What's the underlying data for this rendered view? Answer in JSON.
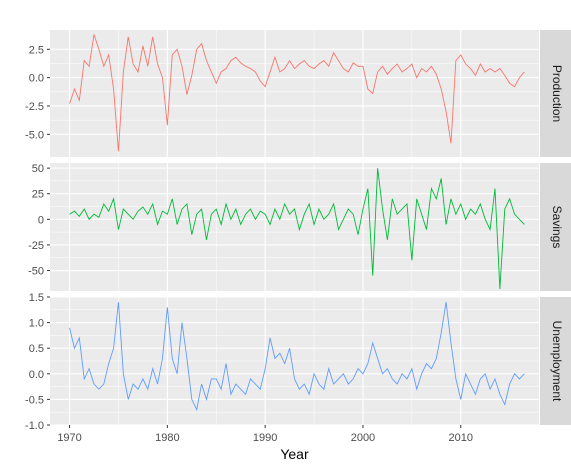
{
  "chart_data": {
    "type": "line",
    "xlabel": "Year",
    "x_ticks": [
      1970,
      1980,
      1990,
      2000,
      2010
    ],
    "x_range": [
      1968,
      2018
    ],
    "grid": true,
    "panels": [
      {
        "name": "Production",
        "color": "#f8766d",
        "y_ticks": [
          "2.5",
          "0.0",
          "-2.5",
          "-5.0"
        ],
        "y_tick_values": [
          2.5,
          0,
          -2.5,
          -5
        ],
        "ylim": [
          -7.0,
          4.2
        ],
        "x": [
          1970.0,
          1970.5,
          1971.0,
          1971.5,
          1972.0,
          1972.5,
          1973.0,
          1973.5,
          1974.0,
          1974.5,
          1975.0,
          1975.5,
          1976.0,
          1976.5,
          1977.0,
          1977.5,
          1978.0,
          1978.5,
          1979.0,
          1979.5,
          1980.0,
          1980.5,
          1981.0,
          1981.5,
          1982.0,
          1982.5,
          1983.0,
          1983.5,
          1984.0,
          1984.5,
          1985.0,
          1985.5,
          1986.0,
          1986.5,
          1987.0,
          1987.5,
          1988.0,
          1988.5,
          1989.0,
          1989.5,
          1990.0,
          1990.5,
          1991.0,
          1991.5,
          1992.0,
          1992.5,
          1993.0,
          1993.5,
          1994.0,
          1994.5,
          1995.0,
          1995.5,
          1996.0,
          1996.5,
          1997.0,
          1997.5,
          1998.0,
          1998.5,
          1999.0,
          1999.5,
          2000.0,
          2000.5,
          2001.0,
          2001.5,
          2002.0,
          2002.5,
          2003.0,
          2003.5,
          2004.0,
          2004.5,
          2005.0,
          2005.5,
          2006.0,
          2006.5,
          2007.0,
          2007.5,
          2008.0,
          2008.5,
          2009.0,
          2009.5,
          2010.0,
          2010.5,
          2011.0,
          2011.5,
          2012.0,
          2012.5,
          2013.0,
          2013.5,
          2014.0,
          2014.5,
          2015.0,
          2015.5,
          2016.0,
          2016.5
        ],
        "values": [
          -2.3,
          -1.0,
          -2.0,
          1.5,
          1.0,
          3.8,
          2.5,
          1.0,
          2.0,
          -1.0,
          -6.5,
          0.5,
          3.6,
          1.2,
          0.5,
          2.8,
          1.0,
          3.6,
          1.2,
          0.0,
          -4.2,
          2.0,
          2.5,
          1.0,
          -1.5,
          0.2,
          2.5,
          3.0,
          1.5,
          0.5,
          -0.5,
          0.5,
          0.8,
          1.5,
          1.8,
          1.3,
          1.0,
          0.8,
          0.5,
          -0.3,
          -0.8,
          0.5,
          1.8,
          0.5,
          0.8,
          1.5,
          0.8,
          1.2,
          1.5,
          1.0,
          0.8,
          1.2,
          1.5,
          1.0,
          2.2,
          1.5,
          0.8,
          0.5,
          1.3,
          1.0,
          1.0,
          -1.0,
          -1.4,
          0.5,
          1.0,
          0.3,
          0.8,
          1.2,
          0.5,
          0.8,
          1.2,
          0.0,
          0.8,
          0.5,
          1.0,
          0.3,
          -1.0,
          -3.0,
          -5.8,
          1.5,
          2.0,
          1.2,
          0.8,
          0.2,
          1.2,
          0.5,
          0.8,
          0.5,
          0.8,
          0.2,
          -0.5,
          -0.8,
          0.0,
          0.5
        ]
      },
      {
        "name": "Savings",
        "color": "#00ba38",
        "y_ticks": [
          "50",
          "25",
          "0",
          "-25",
          "-50"
        ],
        "y_tick_values": [
          50,
          25,
          0,
          -25,
          -50
        ],
        "ylim": [
          -70,
          55
        ],
        "x": [
          1970.0,
          1970.5,
          1971.0,
          1971.5,
          1972.0,
          1972.5,
          1973.0,
          1973.5,
          1974.0,
          1974.5,
          1975.0,
          1975.5,
          1976.0,
          1976.5,
          1977.0,
          1977.5,
          1978.0,
          1978.5,
          1979.0,
          1979.5,
          1980.0,
          1980.5,
          1981.0,
          1981.5,
          1982.0,
          1982.5,
          1983.0,
          1983.5,
          1984.0,
          1984.5,
          1985.0,
          1985.5,
          1986.0,
          1986.5,
          1987.0,
          1987.5,
          1988.0,
          1988.5,
          1989.0,
          1989.5,
          1990.0,
          1990.5,
          1991.0,
          1991.5,
          1992.0,
          1992.5,
          1993.0,
          1993.5,
          1994.0,
          1994.5,
          1995.0,
          1995.5,
          1996.0,
          1996.5,
          1997.0,
          1997.5,
          1998.0,
          1998.5,
          1999.0,
          1999.5,
          2000.0,
          2000.5,
          2001.0,
          2001.5,
          2002.0,
          2002.5,
          2003.0,
          2003.5,
          2004.0,
          2004.5,
          2005.0,
          2005.5,
          2006.0,
          2006.5,
          2007.0,
          2007.5,
          2008.0,
          2008.5,
          2009.0,
          2009.5,
          2010.0,
          2010.5,
          2011.0,
          2011.5,
          2012.0,
          2012.5,
          2013.0,
          2013.5,
          2014.0,
          2014.5,
          2015.0,
          2015.5,
          2016.0,
          2016.5
        ],
        "values": [
          5,
          8,
          3,
          10,
          0,
          5,
          2,
          15,
          8,
          20,
          -10,
          10,
          5,
          0,
          8,
          12,
          5,
          15,
          -5,
          8,
          5,
          20,
          -5,
          10,
          15,
          -15,
          5,
          10,
          -20,
          5,
          10,
          -5,
          15,
          0,
          10,
          -5,
          5,
          10,
          0,
          8,
          5,
          -5,
          10,
          0,
          15,
          5,
          10,
          -10,
          5,
          15,
          -5,
          10,
          0,
          5,
          15,
          -10,
          0,
          10,
          5,
          -15,
          10,
          30,
          -55,
          50,
          10,
          -20,
          20,
          5,
          10,
          15,
          -40,
          20,
          5,
          -10,
          30,
          20,
          40,
          -5,
          20,
          5,
          15,
          0,
          10,
          5,
          15,
          0,
          -10,
          30,
          -68,
          10,
          20,
          5,
          0,
          -5
        ]
      },
      {
        "name": "Unemployment",
        "color": "#619cff",
        "y_ticks": [
          "1.5",
          "1.0",
          "0.5",
          "0.0",
          "-0.5",
          "-1.0"
        ],
        "y_tick_values": [
          1.5,
          1,
          0.5,
          0,
          -0.5,
          -1
        ],
        "ylim": [
          -1.0,
          1.5
        ],
        "x": [
          1970.0,
          1970.5,
          1971.0,
          1971.5,
          1972.0,
          1972.5,
          1973.0,
          1973.5,
          1974.0,
          1974.5,
          1975.0,
          1975.5,
          1976.0,
          1976.5,
          1977.0,
          1977.5,
          1978.0,
          1978.5,
          1979.0,
          1979.5,
          1980.0,
          1980.5,
          1981.0,
          1981.5,
          1982.0,
          1982.5,
          1983.0,
          1983.5,
          1984.0,
          1984.5,
          1985.0,
          1985.5,
          1986.0,
          1986.5,
          1987.0,
          1987.5,
          1988.0,
          1988.5,
          1989.0,
          1989.5,
          1990.0,
          1990.5,
          1991.0,
          1991.5,
          1992.0,
          1992.5,
          1993.0,
          1993.5,
          1994.0,
          1994.5,
          1995.0,
          1995.5,
          1996.0,
          1996.5,
          1997.0,
          1997.5,
          1998.0,
          1998.5,
          1999.0,
          1999.5,
          2000.0,
          2000.5,
          2001.0,
          2001.5,
          2002.0,
          2002.5,
          2003.0,
          2003.5,
          2004.0,
          2004.5,
          2005.0,
          2005.5,
          2006.0,
          2006.5,
          2007.0,
          2007.5,
          2008.0,
          2008.5,
          2009.0,
          2009.5,
          2010.0,
          2010.5,
          2011.0,
          2011.5,
          2012.0,
          2012.5,
          2013.0,
          2013.5,
          2014.0,
          2014.5,
          2015.0,
          2015.5,
          2016.0,
          2016.5
        ],
        "values": [
          0.9,
          0.5,
          0.7,
          -0.1,
          0.1,
          -0.2,
          -0.3,
          -0.2,
          0.2,
          0.5,
          1.4,
          0.0,
          -0.5,
          -0.2,
          -0.3,
          -0.1,
          -0.3,
          0.1,
          -0.2,
          0.3,
          1.3,
          0.3,
          0.0,
          1.0,
          0.3,
          -0.5,
          -0.7,
          -0.2,
          -0.5,
          -0.1,
          -0.1,
          -0.3,
          0.2,
          -0.4,
          -0.2,
          -0.3,
          -0.4,
          -0.1,
          -0.2,
          -0.3,
          0.1,
          0.7,
          0.3,
          0.4,
          0.2,
          0.5,
          -0.1,
          -0.3,
          -0.2,
          -0.4,
          0.0,
          -0.2,
          -0.3,
          0.1,
          -0.2,
          -0.1,
          0.0,
          -0.2,
          -0.1,
          0.1,
          0.0,
          0.2,
          0.6,
          0.3,
          0.0,
          0.1,
          -0.1,
          -0.2,
          0.0,
          -0.1,
          0.1,
          -0.3,
          0.0,
          0.2,
          0.1,
          0.3,
          0.8,
          1.4,
          0.6,
          -0.1,
          -0.5,
          0.0,
          -0.2,
          -0.4,
          -0.1,
          0.0,
          -0.3,
          -0.1,
          -0.4,
          -0.6,
          -0.2,
          0.0,
          -0.1,
          0.0
        ]
      }
    ]
  }
}
